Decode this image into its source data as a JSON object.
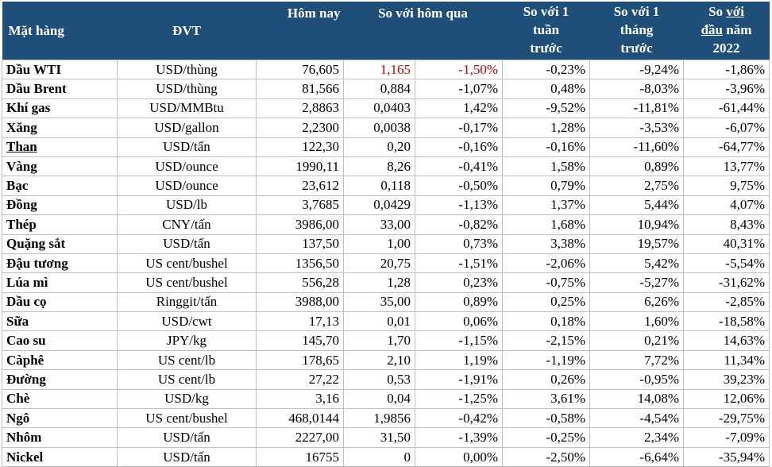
{
  "columns": {
    "item": "Mặt hàng",
    "unit": "ĐVT",
    "today": "Hôm nay",
    "vs_yesterday": "So với hôm qua",
    "vs_week_l1": "So với 1",
    "vs_week_l2": "tuần",
    "vs_week_l3": "trước",
    "vs_month_l1": "So với 1",
    "vs_month_l2": "tháng",
    "vs_month_l3": "trước",
    "vs_year_l1a": "So ",
    "vs_year_l1b": "với",
    "vs_year_l2a": "đầu",
    "vs_year_l2b": " năm",
    "vs_year_l3": "2022"
  },
  "colors": {
    "header_bg": "#1f4e79",
    "header_text": "#ffffff",
    "highlight_red": "#c00000",
    "grid": "#bfbfbf"
  },
  "rows": [
    {
      "name": "Dầu WTI",
      "unit": "USD/thùng",
      "today": "76,605",
      "chg": "1,165",
      "chg_pct": "-1,50%",
      "week": "-0,23%",
      "month": "-9,24%",
      "ytd": "-1,86%"
    },
    {
      "name": "Dầu Brent",
      "unit": "USD/thùng",
      "today": "81,566",
      "chg": "0,884",
      "chg_pct": "-1,07%",
      "week": "0,48%",
      "month": "-8,03%",
      "ytd": "-3,96%"
    },
    {
      "name": "Khí gas",
      "unit": "USD/MMBtu",
      "today": "2,8863",
      "chg": "0,0403",
      "chg_pct": "1,42%",
      "week": "-9,52%",
      "month": "-11,81%",
      "ytd": "-61,44%"
    },
    {
      "name": "Xăng",
      "unit": "USD/gallon",
      "today": "2,2300",
      "chg": "0,0038",
      "chg_pct": "-0,17%",
      "week": "1,28%",
      "month": "-3,53%",
      "ytd": "-6,07%"
    },
    {
      "name": "Than",
      "unit": "USD/tấn",
      "today": "122,30",
      "chg": "0,20",
      "chg_pct": "-0,16%",
      "week": "-0,16%",
      "month": "-11,60%",
      "ytd": "-64,77%"
    },
    {
      "name": "Vàng",
      "unit": "USD/ounce",
      "today": "1990,11",
      "chg": "8,26",
      "chg_pct": "-0,41%",
      "week": "1,58%",
      "month": "0,89%",
      "ytd": "13,77%"
    },
    {
      "name": "Bạc",
      "unit": "USD/ounce",
      "today": "23,612",
      "chg": "0,118",
      "chg_pct": "-0,50%",
      "week": "0,79%",
      "month": "2,75%",
      "ytd": "9,75%"
    },
    {
      "name": "Đồng",
      "unit": "USD/lb",
      "today": "3,7685",
      "chg": "0,0429",
      "chg_pct": "-1,13%",
      "week": "1,37%",
      "month": "5,44%",
      "ytd": "4,07%"
    },
    {
      "name": "Thép",
      "unit": "CNY/tấn",
      "today": "3986,00",
      "chg": "33,00",
      "chg_pct": "-0,82%",
      "week": "1,68%",
      "month": "10,94%",
      "ytd": "8,43%"
    },
    {
      "name": "Quặng sắt",
      "unit": "USD/tấn",
      "today": "137,50",
      "chg": "1,00",
      "chg_pct": "0,73%",
      "week": "3,38%",
      "month": "19,57%",
      "ytd": "40,31%"
    },
    {
      "name": "Đậu tương",
      "unit": "US cent/bushel",
      "today": "1356,50",
      "chg": "20,75",
      "chg_pct": "-1,51%",
      "week": "-2,06%",
      "month": "5,42%",
      "ytd": "-5,54%"
    },
    {
      "name": "Lúa mì",
      "unit": "US cent/bushel",
      "today": "556,28",
      "chg": "1,28",
      "chg_pct": "0,23%",
      "week": "-0,75%",
      "month": "-5,27%",
      "ytd": "-31,62%"
    },
    {
      "name": "Dầu cọ",
      "unit": "Ringgit/tấn",
      "today": "3988,00",
      "chg": "35,00",
      "chg_pct": "0,89%",
      "week": "0,25%",
      "month": "6,26%",
      "ytd": "-2,85%"
    },
    {
      "name": "Sữa",
      "unit": "USD/cwt",
      "today": "17,13",
      "chg": "0,01",
      "chg_pct": "0,06%",
      "week": "0,18%",
      "month": "1,60%",
      "ytd": "-18,58%"
    },
    {
      "name": "Cao su",
      "unit": "JPY/kg",
      "today": "145,70",
      "chg": "1,70",
      "chg_pct": "-1,15%",
      "week": "-2,15%",
      "month": "0,21%",
      "ytd": "14,63%"
    },
    {
      "name": "Càphê",
      "unit": "US cent/lb",
      "today": "178,65",
      "chg": "2,10",
      "chg_pct": "1,19%",
      "week": "-1,19%",
      "month": "7,72%",
      "ytd": "11,34%"
    },
    {
      "name": "Đường",
      "unit": "US cent/lb",
      "today": "27,22",
      "chg": "0,53",
      "chg_pct": "-1,91%",
      "week": "0,26%",
      "month": "-0,95%",
      "ytd": "39,23%"
    },
    {
      "name": "Chè",
      "unit": "USD/kg",
      "today": "3,16",
      "chg": "0,04",
      "chg_pct": "-1,25%",
      "week": "3,61%",
      "month": "14,08%",
      "ytd": "12,06%"
    },
    {
      "name": "Ngô",
      "unit": "US cent/bushel",
      "today": "468,0144",
      "chg": "1,9856",
      "chg_pct": "-0,42%",
      "week": "-0,58%",
      "month": "-4,54%",
      "ytd": "-29,75%"
    },
    {
      "name": "Nhôm",
      "unit": "USD/tấn",
      "today": "2227,00",
      "chg": "31,50",
      "chg_pct": "-1,39%",
      "week": "-0,25%",
      "month": "2,34%",
      "ytd": "-7,09%"
    },
    {
      "name": "Nickel",
      "unit": "USD/tấn",
      "today": "16755",
      "chg": "0",
      "chg_pct": "0,00%",
      "week": "-2,50%",
      "month": "-6,64%",
      "ytd": "-35,94%"
    }
  ]
}
